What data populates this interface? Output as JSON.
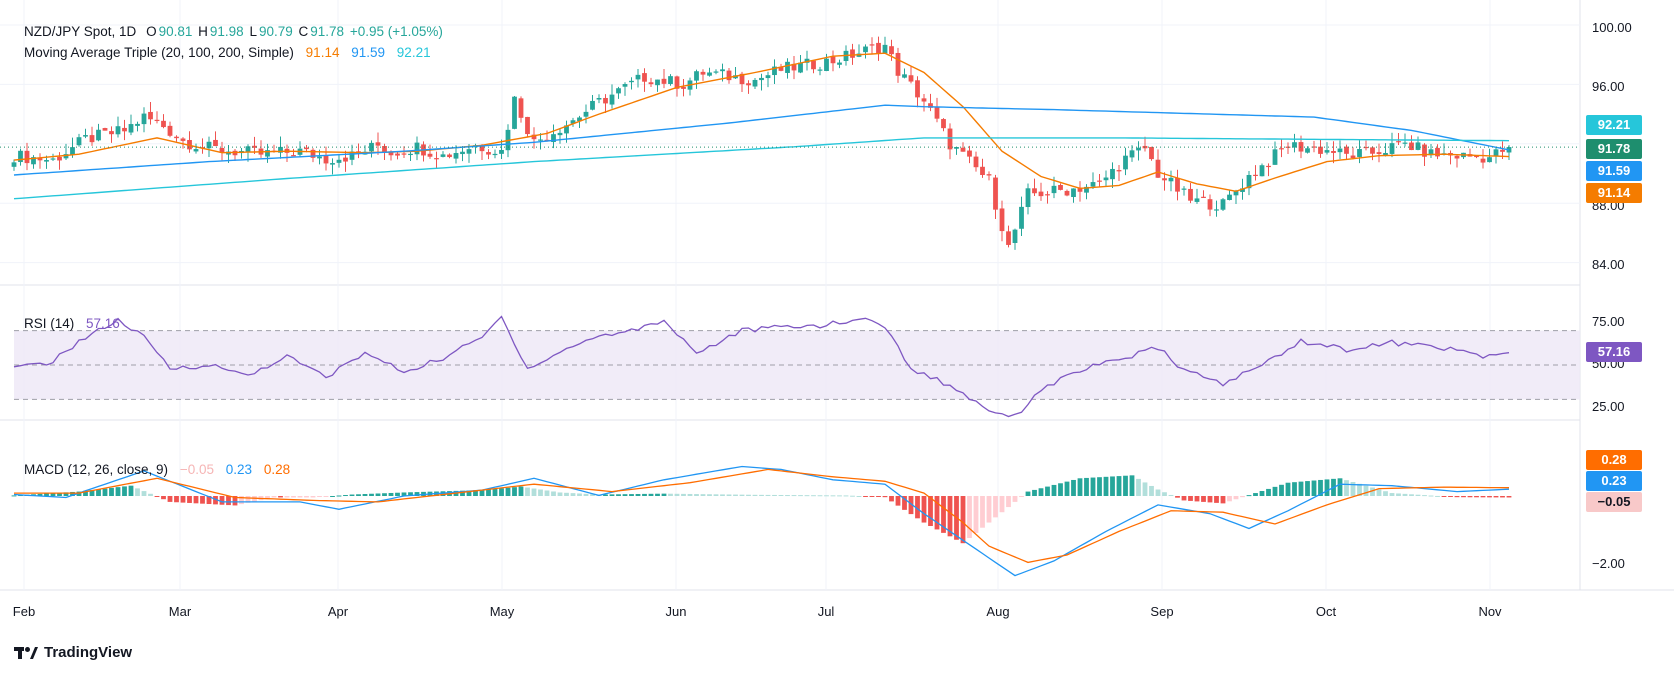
{
  "header": {
    "symbol": "NZD/JPY Spot, 1D",
    "ohlc": {
      "o_label": "O",
      "o": "90.81",
      "h_label": "H",
      "h": "91.98",
      "l_label": "L",
      "l": "90.79",
      "c_label": "C",
      "c": "91.78",
      "change": "+0.95 (+1.05%)"
    },
    "ma_label": "Moving Average Triple (20, 100, 200, Simple)",
    "ma20": "91.14",
    "ma100": "91.59",
    "ma200": "92.21"
  },
  "rsi": {
    "label": "RSI (14)",
    "value": "57.16",
    "ticks": [
      "75.00",
      "50.00",
      "25.00"
    ]
  },
  "macd": {
    "label": "MACD (12, 26, close, 9)",
    "hist": "−0.05",
    "macd": "0.23",
    "signal": "0.28",
    "ticks": [
      "−2.00"
    ]
  },
  "price_tags": {
    "ma200": "92.21",
    "close": "91.78",
    "ma100": "91.59",
    "ma20": "91.14"
  },
  "macd_tags": {
    "signal": "0.28",
    "macd": "0.23",
    "hist": "−0.05"
  },
  "brand": "TradingView",
  "colors": {
    "up": "#26a69a",
    "down": "#ef5350",
    "ma20": "#f57c00",
    "ma100": "#2196f3",
    "ma200": "#26c6da",
    "rsi": "#7e57c2",
    "macd": "#2196f3",
    "signal": "#ff6d00"
  },
  "chart_data": [
    {
      "type": "candlestick",
      "title": "NZD/JPY Spot, 1D",
      "x_ticks": [
        "Feb",
        "Mar",
        "Apr",
        "May",
        "Jun",
        "Jul",
        "Aug",
        "Sep",
        "Oct",
        "Nov"
      ],
      "y_ticks": [
        "100.00",
        "96.00",
        "88.00",
        "84.00"
      ],
      "ylim": [
        82,
        101
      ],
      "grid": true,
      "close_anchors": [
        [
          0,
          91.2
        ],
        [
          6,
          90.9
        ],
        [
          11,
          92.3
        ],
        [
          17,
          92.9
        ],
        [
          20,
          93.8
        ],
        [
          23,
          93.2
        ],
        [
          26,
          92.2
        ],
        [
          30,
          91.7
        ],
        [
          38,
          91.3
        ],
        [
          44,
          91.5
        ],
        [
          48,
          91.0
        ],
        [
          52,
          91.2
        ],
        [
          56,
          91.9
        ],
        [
          58,
          91.4
        ],
        [
          62,
          91.8
        ],
        [
          66,
          91.2
        ],
        [
          71,
          91.9
        ],
        [
          75,
          91.5
        ],
        [
          77,
          95.0
        ],
        [
          80,
          92.1
        ],
        [
          86,
          93.6
        ],
        [
          90,
          94.8
        ],
        [
          97,
          96.5
        ],
        [
          103,
          96.0
        ],
        [
          106,
          96.8
        ],
        [
          114,
          96.3
        ],
        [
          118,
          97.0
        ],
        [
          126,
          97.6
        ],
        [
          132,
          98.4
        ],
        [
          134,
          98.6
        ],
        [
          136,
          96.9
        ],
        [
          140,
          94.9
        ],
        [
          144,
          92.0
        ],
        [
          150,
          89.5
        ],
        [
          153,
          85.0
        ],
        [
          156,
          88.6
        ],
        [
          162,
          88.9
        ],
        [
          167,
          89.3
        ],
        [
          171,
          91.0
        ],
        [
          174,
          91.7
        ],
        [
          176,
          90.0
        ],
        [
          181,
          88.2
        ],
        [
          186,
          87.9
        ],
        [
          190,
          89.8
        ],
        [
          196,
          91.9
        ],
        [
          203,
          91.5
        ],
        [
          205,
          91.2
        ],
        [
          209,
          91.4
        ],
        [
          214,
          92.0
        ],
        [
          218,
          91.3
        ],
        [
          222,
          91.2
        ],
        [
          227,
          91.1
        ],
        [
          230,
          91.78
        ]
      ],
      "series": [
        {
          "name": "Moving Average Triple (20, 100, 200, Simple) 20",
          "anchors": [
            [
              0,
              90.9
            ],
            [
              10,
              91.3
            ],
            [
              22,
              92.4
            ],
            [
              32,
              91.4
            ],
            [
              42,
              91.5
            ],
            [
              54,
              91.4
            ],
            [
              62,
              91.5
            ],
            [
              72,
              91.9
            ],
            [
              82,
              92.7
            ],
            [
              90,
              94.0
            ],
            [
              102,
              95.8
            ],
            [
              114,
              96.8
            ],
            [
              126,
              97.9
            ],
            [
              134,
              98.1
            ],
            [
              140,
              96.8
            ],
            [
              146,
              94.5
            ],
            [
              152,
              91.5
            ],
            [
              158,
              89.8
            ],
            [
              164,
              89.0
            ],
            [
              170,
              89.2
            ],
            [
              176,
              90.1
            ],
            [
              182,
              89.3
            ],
            [
              188,
              88.8
            ],
            [
              194,
              89.7
            ],
            [
              202,
              90.8
            ],
            [
              210,
              91.2
            ],
            [
              220,
              91.3
            ],
            [
              230,
              91.14
            ]
          ]
        },
        {
          "name": "Moving Average Triple (20, 100, 200, Simple) 100",
          "anchors": [
            [
              0,
              89.9
            ],
            [
              30,
              90.8
            ],
            [
              60,
              91.5
            ],
            [
              80,
              92.1
            ],
            [
              110,
              93.4
            ],
            [
              134,
              94.6
            ],
            [
              140,
              94.5
            ],
            [
              160,
              94.3
            ],
            [
              200,
              93.8
            ],
            [
              215,
              92.9
            ],
            [
              230,
              91.59
            ]
          ]
        },
        {
          "name": "Moving Average Triple (20, 100, 200, Simple) 200",
          "anchors": [
            [
              0,
              88.3
            ],
            [
              40,
              89.6
            ],
            [
              80,
              90.8
            ],
            [
              120,
              91.8
            ],
            [
              140,
              92.4
            ],
            [
              170,
              92.4
            ],
            [
              200,
              92.3
            ],
            [
              230,
              92.21
            ]
          ]
        }
      ]
    },
    {
      "type": "line",
      "title": "RSI (14)",
      "y_ticks": [
        "75.00",
        "50.00",
        "25.00"
      ],
      "bands": [
        30,
        50,
        70
      ],
      "series": [
        {
          "name": "RSI (14)",
          "anchors": [
            [
              0,
              48
            ],
            [
              6,
              52
            ],
            [
              10,
              64
            ],
            [
              16,
              76
            ],
            [
              20,
              66
            ],
            [
              24,
              48
            ],
            [
              30,
              50
            ],
            [
              36,
              44
            ],
            [
              42,
              55
            ],
            [
              48,
              43
            ],
            [
              54,
              57
            ],
            [
              60,
              46
            ],
            [
              66,
              54
            ],
            [
              72,
              66
            ],
            [
              75,
              78
            ],
            [
              79,
              48
            ],
            [
              86,
              61
            ],
            [
              90,
              67
            ],
            [
              94,
              69
            ],
            [
              100,
              76
            ],
            [
              105,
              57
            ],
            [
              112,
              70
            ],
            [
              118,
              72
            ],
            [
              124,
              73
            ],
            [
              132,
              77
            ],
            [
              134,
              72
            ],
            [
              138,
              48
            ],
            [
              144,
              38
            ],
            [
              150,
              24
            ],
            [
              154,
              20
            ],
            [
              158,
              36
            ],
            [
              164,
              47
            ],
            [
              170,
              53
            ],
            [
              176,
              60
            ],
            [
              180,
              47
            ],
            [
              186,
              39
            ],
            [
              192,
              50
            ],
            [
              198,
              64
            ],
            [
              205,
              59
            ],
            [
              212,
              63
            ],
            [
              220,
              60
            ],
            [
              226,
              55
            ],
            [
              230,
              57.16
            ]
          ]
        }
      ]
    },
    {
      "type": "bar+line",
      "title": "MACD (12, 26, close, 9)",
      "y_ticks": [
        "−2.00"
      ],
      "series": [
        {
          "name": "MACD (12, 26, close, 9) hist",
          "anchors": [
            [
              0,
              0.02
            ],
            [
              10,
              0.15
            ],
            [
              18,
              0.35
            ],
            [
              24,
              -0.2
            ],
            [
              34,
              -0.32
            ],
            [
              40,
              -0.05
            ],
            [
              46,
              -0.05
            ],
            [
              52,
              0.05
            ],
            [
              60,
              0.12
            ],
            [
              72,
              0.2
            ],
            [
              78,
              0.32
            ],
            [
              84,
              0.12
            ],
            [
              90,
              0.05
            ],
            [
              100,
              0.08
            ],
            [
              114,
              0.04
            ],
            [
              128,
              0.02
            ],
            [
              134,
              -0.04
            ],
            [
              140,
              -0.9
            ],
            [
              146,
              -1.6
            ],
            [
              150,
              -0.9
            ],
            [
              156,
              0.15
            ],
            [
              164,
              0.6
            ],
            [
              172,
              0.7
            ],
            [
              176,
              0.22
            ],
            [
              180,
              -0.15
            ],
            [
              186,
              -0.25
            ],
            [
              196,
              0.45
            ],
            [
              204,
              0.6
            ],
            [
              212,
              0.1
            ],
            [
              222,
              -0.04
            ],
            [
              230,
              -0.05
            ]
          ]
        },
        {
          "name": "MACD (12, 26, close, 9) macd",
          "anchors": [
            [
              0,
              0.05
            ],
            [
              8,
              -0.05
            ],
            [
              20,
              0.85
            ],
            [
              32,
              -0.2
            ],
            [
              44,
              -0.2
            ],
            [
              50,
              -0.45
            ],
            [
              60,
              0.0
            ],
            [
              72,
              0.2
            ],
            [
              80,
              0.6
            ],
            [
              90,
              0.02
            ],
            [
              100,
              0.55
            ],
            [
              112,
              1.0
            ],
            [
              118,
              0.9
            ],
            [
              126,
              0.55
            ],
            [
              134,
              0.4
            ],
            [
              140,
              -0.6
            ],
            [
              148,
              -1.8
            ],
            [
              154,
              -2.7
            ],
            [
              160,
              -2.2
            ],
            [
              168,
              -1.2
            ],
            [
              176,
              -0.3
            ],
            [
              184,
              -0.6
            ],
            [
              190,
              -1.1
            ],
            [
              196,
              -0.5
            ],
            [
              204,
              0.4
            ],
            [
              212,
              0.35
            ],
            [
              222,
              0.15
            ],
            [
              230,
              0.23
            ]
          ]
        },
        {
          "name": "MACD (12, 26, close, 9) signal",
          "anchors": [
            [
              0,
              0.1
            ],
            [
              10,
              0.1
            ],
            [
              22,
              0.6
            ],
            [
              34,
              -0.05
            ],
            [
              46,
              -0.15
            ],
            [
              56,
              -0.2
            ],
            [
              68,
              0.1
            ],
            [
              80,
              0.4
            ],
            [
              92,
              0.15
            ],
            [
              104,
              0.45
            ],
            [
              116,
              0.9
            ],
            [
              126,
              0.65
            ],
            [
              134,
              0.5
            ],
            [
              140,
              0.1
            ],
            [
              146,
              -0.9
            ],
            [
              150,
              -1.7
            ],
            [
              156,
              -2.25
            ],
            [
              162,
              -2.0
            ],
            [
              170,
              -1.2
            ],
            [
              178,
              -0.5
            ],
            [
              186,
              -0.55
            ],
            [
              194,
              -0.95
            ],
            [
              202,
              -0.3
            ],
            [
              210,
              0.25
            ],
            [
              220,
              0.3
            ],
            [
              230,
              0.28
            ]
          ]
        }
      ]
    }
  ]
}
